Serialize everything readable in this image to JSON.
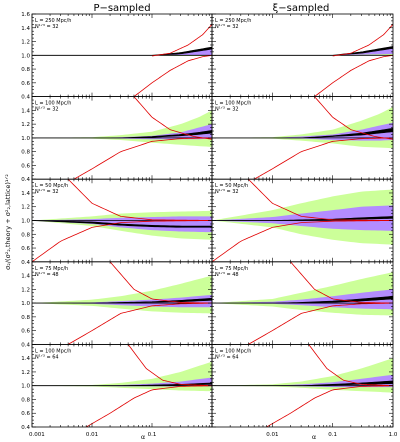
{
  "chart_data": {
    "type": "area",
    "figure": {
      "column_titles": [
        "P−sampled",
        "ξ−sampled"
      ],
      "ylabel": "σ₂/(σ²₂,theory + σ²₂,lattice)¹ᐟ²",
      "xlabel": "α",
      "xscale": "log",
      "xlim": [
        0.001,
        1.0
      ],
      "x_ticks": [
        0.001,
        0.01,
        0.1,
        1.0
      ],
      "x_tick_labels": [
        "0.001",
        "0.01",
        "0.1",
        "1.0"
      ],
      "ylim": [
        0.4,
        1.6
      ],
      "y_ticks": [
        0.4,
        0.6,
        0.8,
        1.0,
        1.2,
        1.4,
        1.6
      ],
      "y_tick_labels": [
        "0.4",
        "0.6",
        "0.8",
        "1.0",
        "1.2",
        "1.4",
        "1.6"
      ],
      "grid": false,
      "colors": {
        "outer_band": "#ccff99",
        "inner_band": "#b38cff",
        "core_band": "#000000",
        "red_curve": "#e00000",
        "reference_line": "#000000"
      }
    },
    "panels": [
      {
        "row": 0,
        "col": 0,
        "annotation": [
          "L = 250 Mpc/h",
          "N¹ᐟ³ = 32"
        ],
        "bands": {
          "x": [
            0.001,
            0.01,
            0.05,
            0.1,
            0.3,
            1.0
          ],
          "outer_lo": [
            1.0,
            1.0,
            1.0,
            1.0,
            0.99,
            0.99
          ],
          "outer_hi": [
            1.0,
            1.0,
            1.0,
            1.005,
            1.03,
            1.1
          ],
          "inner_lo": [
            1.0,
            1.0,
            1.0,
            1.0,
            1.0,
            1.0
          ],
          "inner_hi": [
            1.0,
            1.0,
            1.0,
            1.003,
            1.03,
            1.12
          ],
          "core_lo": [
            1.0,
            1.0,
            1.0,
            1.0,
            1.02,
            1.09
          ],
          "core_hi": [
            1.0,
            1.0,
            1.0,
            1.0,
            1.04,
            1.12
          ]
        },
        "red_curves": [
          {
            "x": [
              0.05,
              0.1,
              0.2,
              0.4,
              0.7,
              1.0
            ],
            "y": [
              0.4,
              0.6,
              0.78,
              0.92,
              0.98,
              1.0
            ]
          },
          {
            "x": [
              0.1,
              0.2,
              0.4,
              0.7,
              1.0
            ],
            "y": [
              0.99,
              1.03,
              1.15,
              1.3,
              1.45
            ]
          }
        ]
      },
      {
        "row": 0,
        "col": 1,
        "annotation": [
          "L = 250 Mpc/h",
          "N¹ᐟ³ = 32"
        ],
        "bands": {
          "x": [
            0.001,
            0.01,
            0.05,
            0.1,
            0.3,
            1.0
          ],
          "outer_lo": [
            1.0,
            1.0,
            1.0,
            1.0,
            1.0,
            1.0
          ],
          "outer_hi": [
            1.0,
            1.0,
            1.0,
            1.0,
            1.02,
            1.05
          ],
          "inner_lo": [
            1.0,
            1.0,
            1.0,
            1.0,
            1.01,
            1.02
          ],
          "inner_hi": [
            1.0,
            1.0,
            1.0,
            1.0,
            1.04,
            1.1
          ],
          "core_lo": [
            1.0,
            1.0,
            1.0,
            1.0,
            1.03,
            1.1
          ],
          "core_hi": [
            1.0,
            1.0,
            1.0,
            1.0,
            1.05,
            1.13
          ]
        },
        "red_curves": [
          {
            "x": [
              0.05,
              0.1,
              0.2,
              0.4,
              0.7,
              1.0
            ],
            "y": [
              0.4,
              0.6,
              0.78,
              0.92,
              0.98,
              1.0
            ]
          },
          {
            "x": [
              0.1,
              0.2,
              0.4,
              0.7,
              1.0
            ],
            "y": [
              0.99,
              1.03,
              1.15,
              1.3,
              1.45
            ]
          }
        ]
      },
      {
        "row": 1,
        "col": 0,
        "annotation": [
          "L = 100 Mpc/h",
          "N¹ᐟ³ = 32"
        ],
        "bands": {
          "x": [
            0.001,
            0.01,
            0.03,
            0.1,
            0.3,
            0.6,
            1.0
          ],
          "outer_lo": [
            1.0,
            0.99,
            0.97,
            0.93,
            0.9,
            0.88,
            0.87
          ],
          "outer_hi": [
            1.0,
            1.01,
            1.04,
            1.09,
            1.2,
            1.3,
            1.4
          ],
          "inner_lo": [
            1.0,
            1.0,
            0.99,
            0.98,
            0.98,
            0.98,
            0.99
          ],
          "inner_hi": [
            1.0,
            1.0,
            1.01,
            1.03,
            1.08,
            1.15,
            1.2
          ],
          "core_lo": [
            1.0,
            1.0,
            1.0,
            1.01,
            1.03,
            1.05,
            1.07
          ],
          "core_hi": [
            1.0,
            1.0,
            1.0,
            1.02,
            1.05,
            1.08,
            1.11
          ]
        },
        "red_curves": [
          {
            "x": [
              0.005,
              0.01,
              0.03,
              0.1,
              0.3,
              1.0
            ],
            "y": [
              0.4,
              0.55,
              0.8,
              0.95,
              0.99,
              1.0
            ]
          },
          {
            "x": [
              0.05,
              0.1,
              0.2,
              0.5,
              1.0
            ],
            "y": [
              1.6,
              1.3,
              1.12,
              1.02,
              0.98
            ]
          }
        ]
      },
      {
        "row": 1,
        "col": 1,
        "annotation": [
          "L = 100 Mpc/h",
          "N¹ᐟ³ = 32"
        ],
        "bands": {
          "x": [
            0.001,
            0.01,
            0.03,
            0.1,
            0.3,
            0.6,
            1.0
          ],
          "outer_lo": [
            1.0,
            0.99,
            0.96,
            0.92,
            0.87,
            0.86,
            0.85
          ],
          "outer_hi": [
            1.0,
            1.01,
            1.05,
            1.12,
            1.25,
            1.35,
            1.45
          ],
          "inner_lo": [
            1.0,
            1.0,
            0.99,
            0.97,
            0.96,
            0.96,
            0.97
          ],
          "inner_hi": [
            1.0,
            1.0,
            1.02,
            1.05,
            1.12,
            1.18,
            1.22
          ],
          "core_lo": [
            1.0,
            1.0,
            1.0,
            1.02,
            1.04,
            1.07,
            1.09
          ],
          "core_hi": [
            1.0,
            1.0,
            1.0,
            1.03,
            1.07,
            1.11,
            1.14
          ]
        },
        "red_curves": [
          {
            "x": [
              0.005,
              0.01,
              0.03,
              0.1,
              0.3,
              1.0
            ],
            "y": [
              0.4,
              0.55,
              0.8,
              0.95,
              0.99,
              1.0
            ]
          },
          {
            "x": [
              0.05,
              0.1,
              0.2,
              0.5,
              1.0
            ],
            "y": [
              1.6,
              1.3,
              1.12,
              1.02,
              0.98
            ]
          }
        ]
      },
      {
        "row": 2,
        "col": 0,
        "annotation": [
          "L = 50 Mpc/h",
          "N¹ᐟ³ = 32"
        ],
        "bands": {
          "x": [
            0.001,
            0.01,
            0.03,
            0.1,
            0.3,
            1.0
          ],
          "outer_lo": [
            1.0,
            0.92,
            0.85,
            0.78,
            0.74,
            0.72
          ],
          "outer_hi": [
            1.0,
            1.06,
            1.1,
            1.12,
            1.13,
            1.14
          ],
          "inner_lo": [
            1.0,
            0.95,
            0.9,
            0.86,
            0.84,
            0.83
          ],
          "inner_hi": [
            1.0,
            1.02,
            1.04,
            1.05,
            1.06,
            1.06
          ],
          "core_lo": [
            1.0,
            0.96,
            0.93,
            0.91,
            0.9,
            0.9
          ],
          "core_hi": [
            1.0,
            0.98,
            0.95,
            0.93,
            0.92,
            0.92
          ]
        },
        "red_curves": [
          {
            "x": [
              0.001,
              0.003,
              0.01,
              0.03,
              0.1,
              1.0
            ],
            "y": [
              0.4,
              0.7,
              0.9,
              0.97,
              0.99,
              1.0
            ]
          },
          {
            "x": [
              0.004,
              0.01,
              0.03,
              0.1,
              1.0
            ],
            "y": [
              1.6,
              1.25,
              1.06,
              1.01,
              1.0
            ]
          }
        ]
      },
      {
        "row": 2,
        "col": 1,
        "annotation": [
          "L = 50 Mpc/h",
          "N¹ᐟ³ = 32"
        ],
        "bands": {
          "x": [
            0.001,
            0.01,
            0.03,
            0.1,
            0.3,
            1.0
          ],
          "outer_lo": [
            1.0,
            0.9,
            0.8,
            0.72,
            0.67,
            0.65
          ],
          "outer_hi": [
            1.0,
            1.15,
            1.25,
            1.35,
            1.42,
            1.45
          ],
          "inner_lo": [
            1.0,
            0.96,
            0.92,
            0.88,
            0.86,
            0.85
          ],
          "inner_hi": [
            1.0,
            1.05,
            1.1,
            1.15,
            1.2,
            1.22
          ],
          "core_lo": [
            1.0,
            1.0,
            1.0,
            1.01,
            1.02,
            1.03
          ],
          "core_hi": [
            1.0,
            1.0,
            1.01,
            1.02,
            1.04,
            1.06
          ]
        },
        "red_curves": [
          {
            "x": [
              0.001,
              0.003,
              0.01,
              0.03,
              0.1,
              1.0
            ],
            "y": [
              0.4,
              0.7,
              0.9,
              0.97,
              0.99,
              1.0
            ]
          },
          {
            "x": [
              0.004,
              0.01,
              0.03,
              0.1,
              1.0
            ],
            "y": [
              1.6,
              1.25,
              1.06,
              1.01,
              1.0
            ]
          }
        ]
      },
      {
        "row": 3,
        "col": 0,
        "annotation": [
          "L = 75 Mpc/h",
          "N¹ᐟ³ = 48"
        ],
        "bands": {
          "x": [
            0.001,
            0.01,
            0.03,
            0.1,
            0.3,
            1.0
          ],
          "outer_lo": [
            1.0,
            0.96,
            0.92,
            0.88,
            0.86,
            0.85
          ],
          "outer_hi": [
            1.0,
            1.05,
            1.1,
            1.18,
            1.28,
            1.4
          ],
          "inner_lo": [
            1.0,
            0.99,
            0.97,
            0.95,
            0.94,
            0.94
          ],
          "inner_hi": [
            1.0,
            1.01,
            1.03,
            1.05,
            1.08,
            1.12
          ],
          "core_lo": [
            1.0,
            1.0,
            1.0,
            1.01,
            1.02,
            1.04
          ],
          "core_hi": [
            1.0,
            1.0,
            1.01,
            1.02,
            1.04,
            1.07
          ]
        },
        "red_curves": [
          {
            "x": [
              0.004,
              0.01,
              0.03,
              0.1,
              0.3,
              1.0
            ],
            "y": [
              0.4,
              0.6,
              0.85,
              0.96,
              0.99,
              1.0
            ]
          },
          {
            "x": [
              0.02,
              0.05,
              0.1,
              0.3,
              1.0
            ],
            "y": [
              1.6,
              1.2,
              1.06,
              1.01,
              1.0
            ]
          }
        ]
      },
      {
        "row": 3,
        "col": 1,
        "annotation": [
          "L = 75 Mpc/h",
          "N¹ᐟ³ = 48"
        ],
        "bands": {
          "x": [
            0.001,
            0.01,
            0.03,
            0.1,
            0.3,
            1.0
          ],
          "outer_lo": [
            1.0,
            0.95,
            0.9,
            0.86,
            0.83,
            0.82
          ],
          "outer_hi": [
            1.0,
            1.06,
            1.15,
            1.25,
            1.35,
            1.45
          ],
          "inner_lo": [
            1.0,
            0.99,
            0.97,
            0.94,
            0.92,
            0.91
          ],
          "inner_hi": [
            1.0,
            1.02,
            1.05,
            1.1,
            1.15,
            1.2
          ],
          "core_lo": [
            1.0,
            1.0,
            1.0,
            1.01,
            1.03,
            1.06
          ],
          "core_hi": [
            1.0,
            1.0,
            1.01,
            1.03,
            1.06,
            1.1
          ]
        },
        "red_curves": [
          {
            "x": [
              0.004,
              0.01,
              0.03,
              0.1,
              0.3,
              1.0
            ],
            "y": [
              0.4,
              0.6,
              0.85,
              0.96,
              0.99,
              1.0
            ]
          },
          {
            "x": [
              0.02,
              0.05,
              0.1,
              0.3,
              1.0
            ],
            "y": [
              1.6,
              1.2,
              1.06,
              1.01,
              1.0
            ]
          }
        ]
      },
      {
        "row": 4,
        "col": 0,
        "annotation": [
          "L = 100 Mpc/h",
          "N¹ᐟ³ = 64"
        ],
        "bands": {
          "x": [
            0.001,
            0.01,
            0.03,
            0.1,
            0.3,
            1.0
          ],
          "outer_lo": [
            1.0,
            0.99,
            0.97,
            0.95,
            0.93,
            0.92
          ],
          "outer_hi": [
            1.0,
            1.01,
            1.04,
            1.1,
            1.2,
            1.35
          ],
          "inner_lo": [
            1.0,
            1.0,
            0.99,
            0.99,
            0.99,
            0.99
          ],
          "inner_hi": [
            1.0,
            1.0,
            1.01,
            1.03,
            1.06,
            1.12
          ],
          "core_lo": [
            1.0,
            1.0,
            1.0,
            1.0,
            1.01,
            1.02
          ],
          "core_hi": [
            1.0,
            1.0,
            1.0,
            1.01,
            1.02,
            1.04
          ]
        },
        "red_curves": [
          {
            "x": [
              0.008,
              0.02,
              0.05,
              0.1,
              0.3,
              1.0
            ],
            "y": [
              0.4,
              0.6,
              0.82,
              0.94,
              0.99,
              1.0
            ]
          },
          {
            "x": [
              0.04,
              0.08,
              0.15,
              0.3,
              1.0
            ],
            "y": [
              1.6,
              1.25,
              1.08,
              1.02,
              1.0
            ]
          }
        ]
      },
      {
        "row": 4,
        "col": 1,
        "annotation": [
          "L = 100 Mpc/h",
          "N¹ᐟ³ = 64"
        ],
        "bands": {
          "x": [
            0.001,
            0.01,
            0.03,
            0.1,
            0.3,
            1.0
          ],
          "outer_lo": [
            1.0,
            0.99,
            0.97,
            0.94,
            0.92,
            0.9
          ],
          "outer_hi": [
            1.0,
            1.02,
            1.06,
            1.14,
            1.25,
            1.4
          ],
          "inner_lo": [
            1.0,
            1.0,
            0.99,
            0.98,
            0.98,
            0.98
          ],
          "inner_hi": [
            1.0,
            1.0,
            1.02,
            1.05,
            1.1,
            1.16
          ],
          "core_lo": [
            1.0,
            1.0,
            1.0,
            1.01,
            1.02,
            1.03
          ],
          "core_hi": [
            1.0,
            1.0,
            1.0,
            1.02,
            1.04,
            1.07
          ]
        },
        "red_curves": [
          {
            "x": [
              0.008,
              0.02,
              0.05,
              0.1,
              0.3,
              1.0
            ],
            "y": [
              0.4,
              0.6,
              0.82,
              0.94,
              0.99,
              1.0
            ]
          },
          {
            "x": [
              0.04,
              0.08,
              0.15,
              0.3,
              1.0
            ],
            "y": [
              1.6,
              1.25,
              1.08,
              1.02,
              1.0
            ]
          }
        ]
      }
    ]
  }
}
